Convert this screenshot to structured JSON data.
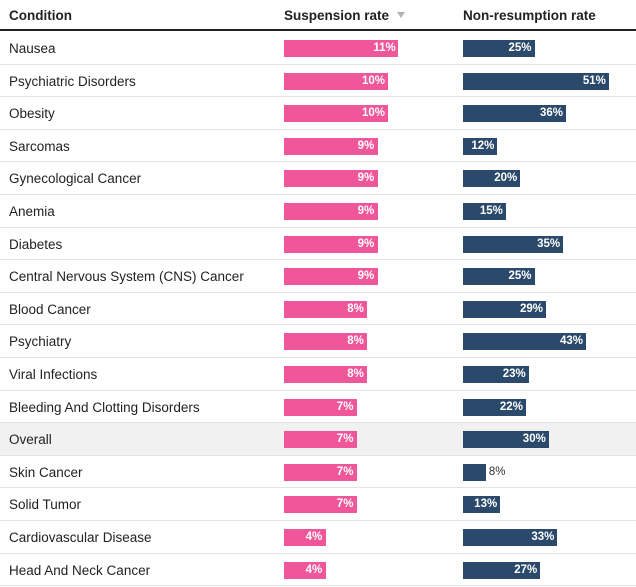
{
  "header": {
    "condition": "Condition",
    "suspension": "Suspension rate",
    "nonresumption": "Non-resumption rate"
  },
  "colors": {
    "suspension": "#f0579b",
    "nonresumption": "#2b4a6b",
    "highlight_row": "#f1f1f1"
  },
  "chart_data": {
    "type": "bar",
    "title": "",
    "categories": [
      "Nausea",
      "Psychiatric Disorders",
      "Obesity",
      "Sarcomas",
      "Gynecological Cancer",
      "Anemia",
      "Diabetes",
      "Central Nervous System (CNS) Cancer",
      "Blood Cancer",
      "Psychiatry",
      "Viral Infections",
      "Bleeding And Clotting Disorders",
      "Overall",
      "Skin Cancer",
      "Solid Tumor",
      "Cardiovascular Disease",
      "Head And Neck Cancer"
    ],
    "series": [
      {
        "name": "Suspension rate",
        "values": [
          11,
          10,
          10,
          9,
          9,
          9,
          9,
          9,
          8,
          8,
          8,
          7,
          7,
          7,
          7,
          4,
          4
        ],
        "labels": [
          "11%",
          "10%",
          "10%",
          "9%",
          "9%",
          "9%",
          "9%",
          "9%",
          "8%",
          "8%",
          "8%",
          "7%",
          "7%",
          "7%",
          "7%",
          "4%",
          "4%"
        ]
      },
      {
        "name": "Non-resumption rate",
        "values": [
          25,
          51,
          36,
          12,
          20,
          15,
          35,
          25,
          29,
          43,
          23,
          22,
          30,
          8,
          13,
          33,
          27
        ],
        "labels": [
          "25%",
          "51%",
          "36%",
          "12%",
          "20%",
          "15%",
          "35%",
          "25%",
          "29%",
          "43%",
          "23%",
          "22%",
          "30%",
          "8%",
          "13%",
          "33%",
          "27%"
        ]
      }
    ],
    "sorted_by": "Suspension rate",
    "highlighted_category": "Overall"
  }
}
